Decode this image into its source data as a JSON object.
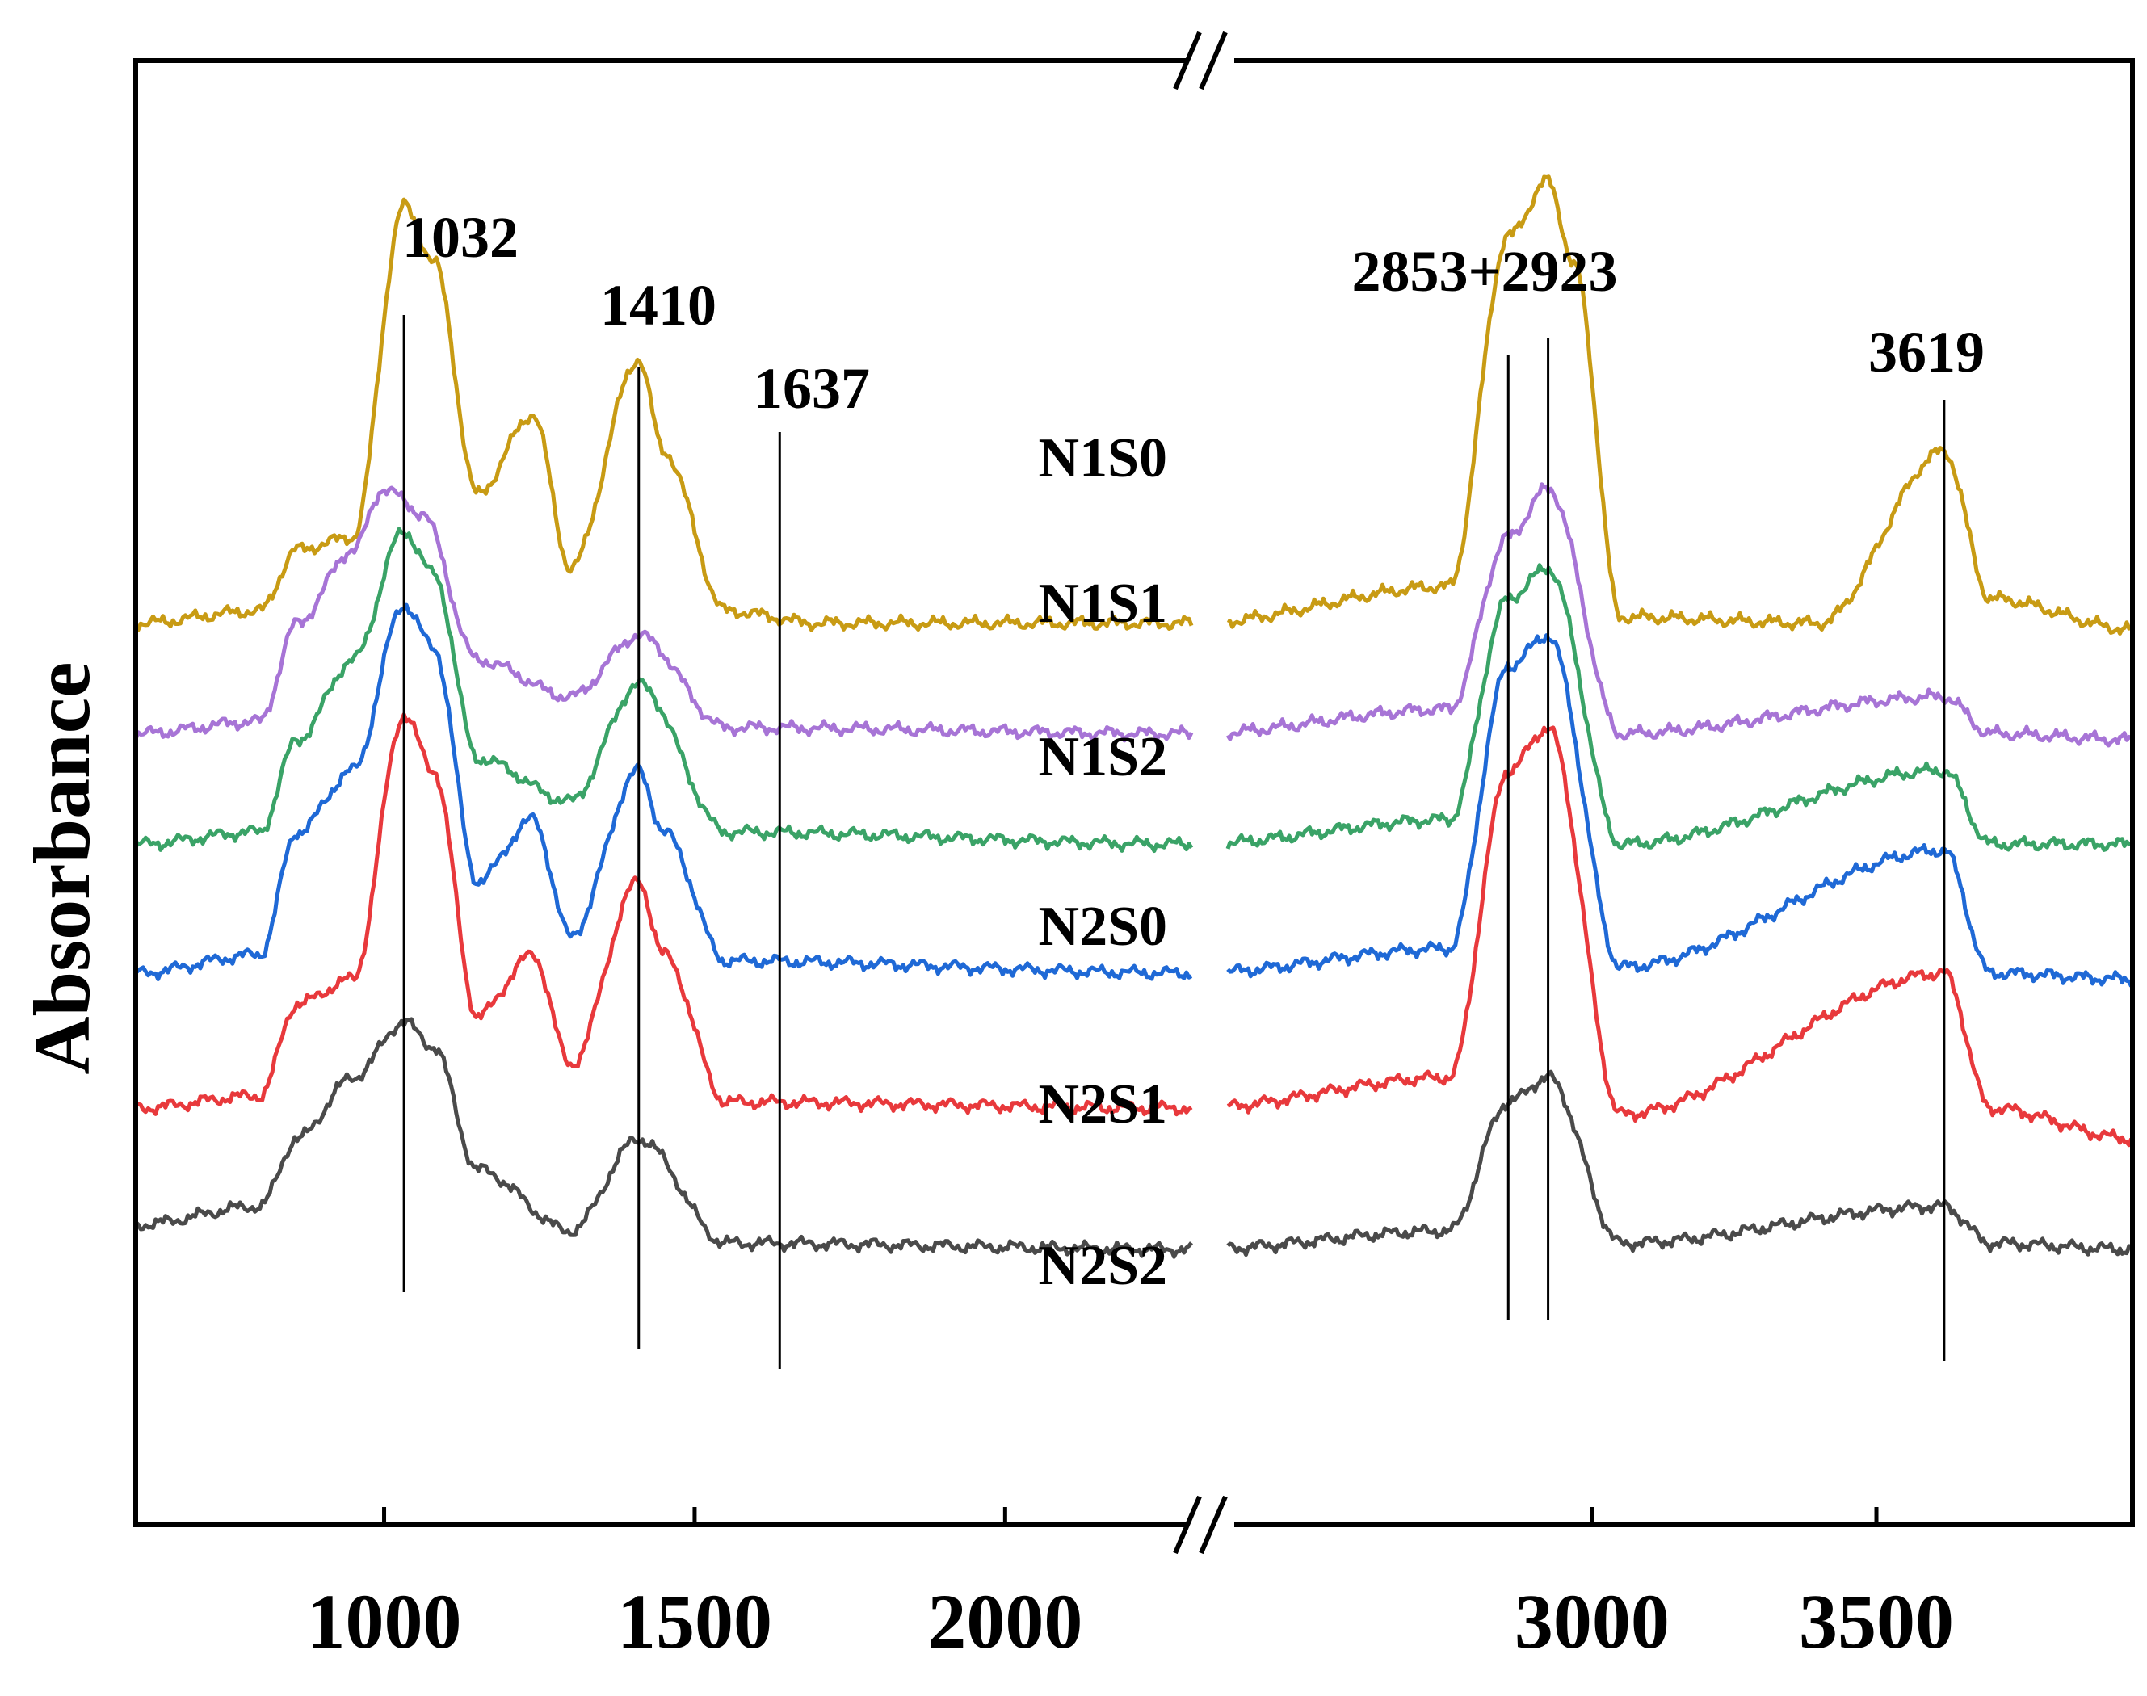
{
  "chart_data": {
    "type": "line",
    "title": "",
    "xlabel": "",
    "ylabel": "Absorbance",
    "x_segments": [
      {
        "range": [
          600,
          2300
        ]
      },
      {
        "range": [
          2360,
          3950
        ]
      }
    ],
    "x_ticks": [
      {
        "value": 1000,
        "label": "1000"
      },
      {
        "value": 1500,
        "label": "1500"
      },
      {
        "value": 2000,
        "label": "2000"
      },
      {
        "value": 3000,
        "label": "3000"
      },
      {
        "value": 3500,
        "label": "3500"
      }
    ],
    "axis_break_symbol": "//",
    "peak_markers": [
      {
        "value": 1032,
        "label": "1032"
      },
      {
        "value": 1410,
        "label": "1410"
      },
      {
        "value": 1637,
        "label": "1637"
      },
      {
        "value": 2853,
        "label": ""
      },
      {
        "value": 2923,
        "label": "2853+2923"
      },
      {
        "value": 3619,
        "label": "3619"
      }
    ],
    "series": [
      {
        "name": "N1S0",
        "color": "#C89B14",
        "baseline": 0.84,
        "scale": 1.0,
        "key_points": [
          [
            600,
            0.84
          ],
          [
            800,
            0.86
          ],
          [
            860,
            0.96
          ],
          [
            950,
            0.98
          ],
          [
            1032,
            1.52
          ],
          [
            1080,
            1.43
          ],
          [
            1150,
            1.05
          ],
          [
            1240,
            1.18
          ],
          [
            1300,
            0.93
          ],
          [
            1410,
            1.27
          ],
          [
            1450,
            1.12
          ],
          [
            1550,
            0.86
          ],
          [
            1700,
            0.84
          ],
          [
            2300,
            0.84
          ],
          [
            2750,
            0.9
          ],
          [
            2853,
            1.47
          ],
          [
            2923,
            1.56
          ],
          [
            2970,
            1.42
          ],
          [
            3050,
            0.85
          ],
          [
            3400,
            0.84
          ],
          [
            3619,
            1.12
          ],
          [
            3700,
            0.88
          ],
          [
            3950,
            0.83
          ]
        ]
      },
      {
        "name": "N1S1",
        "color": "#A774D6",
        "baseline": 0.66,
        "scale": 0.55,
        "key_points": [
          [
            600,
            0.66
          ],
          [
            800,
            0.68
          ],
          [
            860,
            0.84
          ],
          [
            950,
            0.96
          ],
          [
            1000,
            1.06
          ],
          [
            1060,
            1.02
          ],
          [
            1150,
            0.78
          ],
          [
            1300,
            0.72
          ],
          [
            1410,
            0.82
          ],
          [
            1550,
            0.67
          ],
          [
            2300,
            0.66
          ],
          [
            2750,
            0.7
          ],
          [
            2853,
            0.98
          ],
          [
            2923,
            1.06
          ],
          [
            3050,
            0.66
          ],
          [
            3619,
            0.72
          ],
          [
            3700,
            0.66
          ],
          [
            3950,
            0.65
          ]
        ]
      },
      {
        "name": "N1S2",
        "color": "#3AA367",
        "baseline": 0.48,
        "scale": 0.7,
        "key_points": [
          [
            600,
            0.48
          ],
          [
            800,
            0.5
          ],
          [
            860,
            0.65
          ],
          [
            950,
            0.78
          ],
          [
            1032,
            0.99
          ],
          [
            1080,
            0.92
          ],
          [
            1150,
            0.62
          ],
          [
            1300,
            0.55
          ],
          [
            1410,
            0.74
          ],
          [
            1550,
            0.5
          ],
          [
            2300,
            0.48
          ],
          [
            2750,
            0.52
          ],
          [
            2853,
            0.88
          ],
          [
            2923,
            0.93
          ],
          [
            3050,
            0.48
          ],
          [
            3619,
            0.6
          ],
          [
            3700,
            0.48
          ],
          [
            3950,
            0.48
          ]
        ]
      },
      {
        "name": "N2S0",
        "color": "#1F69D6",
        "baseline": 0.27,
        "scale": 0.95,
        "key_points": [
          [
            600,
            0.27
          ],
          [
            800,
            0.3
          ],
          [
            860,
            0.5
          ],
          [
            950,
            0.6
          ],
          [
            1032,
            0.87
          ],
          [
            1080,
            0.8
          ],
          [
            1150,
            0.42
          ],
          [
            1240,
            0.52
          ],
          [
            1300,
            0.33
          ],
          [
            1410,
            0.6
          ],
          [
            1450,
            0.5
          ],
          [
            1550,
            0.29
          ],
          [
            2300,
            0.27
          ],
          [
            2750,
            0.31
          ],
          [
            2853,
            0.77
          ],
          [
            2923,
            0.82
          ],
          [
            3050,
            0.28
          ],
          [
            3619,
            0.47
          ],
          [
            3700,
            0.27
          ],
          [
            3950,
            0.26
          ]
        ]
      },
      {
        "name": "N2S1",
        "color": "#E8393C",
        "baseline": 0.05,
        "scale": 1.0,
        "key_points": [
          [
            600,
            0.05
          ],
          [
            800,
            0.07
          ],
          [
            860,
            0.22
          ],
          [
            950,
            0.26
          ],
          [
            1032,
            0.69
          ],
          [
            1080,
            0.6
          ],
          [
            1150,
            0.2
          ],
          [
            1240,
            0.3
          ],
          [
            1300,
            0.12
          ],
          [
            1410,
            0.42
          ],
          [
            1450,
            0.3
          ],
          [
            1550,
            0.06
          ],
          [
            2300,
            0.05
          ],
          [
            2750,
            0.1
          ],
          [
            2853,
            0.6
          ],
          [
            2923,
            0.67
          ],
          [
            3050,
            0.04
          ],
          [
            3619,
            0.27
          ],
          [
            3700,
            0.05
          ],
          [
            3950,
            0.0
          ]
        ]
      },
      {
        "name": "N2S2",
        "color": "#4A4A4A",
        "baseline": -0.14,
        "scale": 0.6,
        "key_points": [
          [
            600,
            -0.14
          ],
          [
            800,
            -0.11
          ],
          [
            860,
            0.0
          ],
          [
            950,
            0.1
          ],
          [
            1032,
            0.19
          ],
          [
            1080,
            0.15
          ],
          [
            1150,
            -0.05
          ],
          [
            1300,
            -0.15
          ],
          [
            1410,
            0.0
          ],
          [
            1550,
            -0.17
          ],
          [
            2300,
            -0.18
          ],
          [
            2750,
            -0.15
          ],
          [
            2853,
            0.06
          ],
          [
            2923,
            0.1
          ],
          [
            3050,
            -0.17
          ],
          [
            3619,
            -0.11
          ],
          [
            3700,
            -0.17
          ],
          [
            3950,
            -0.18
          ]
        ]
      }
    ]
  }
}
